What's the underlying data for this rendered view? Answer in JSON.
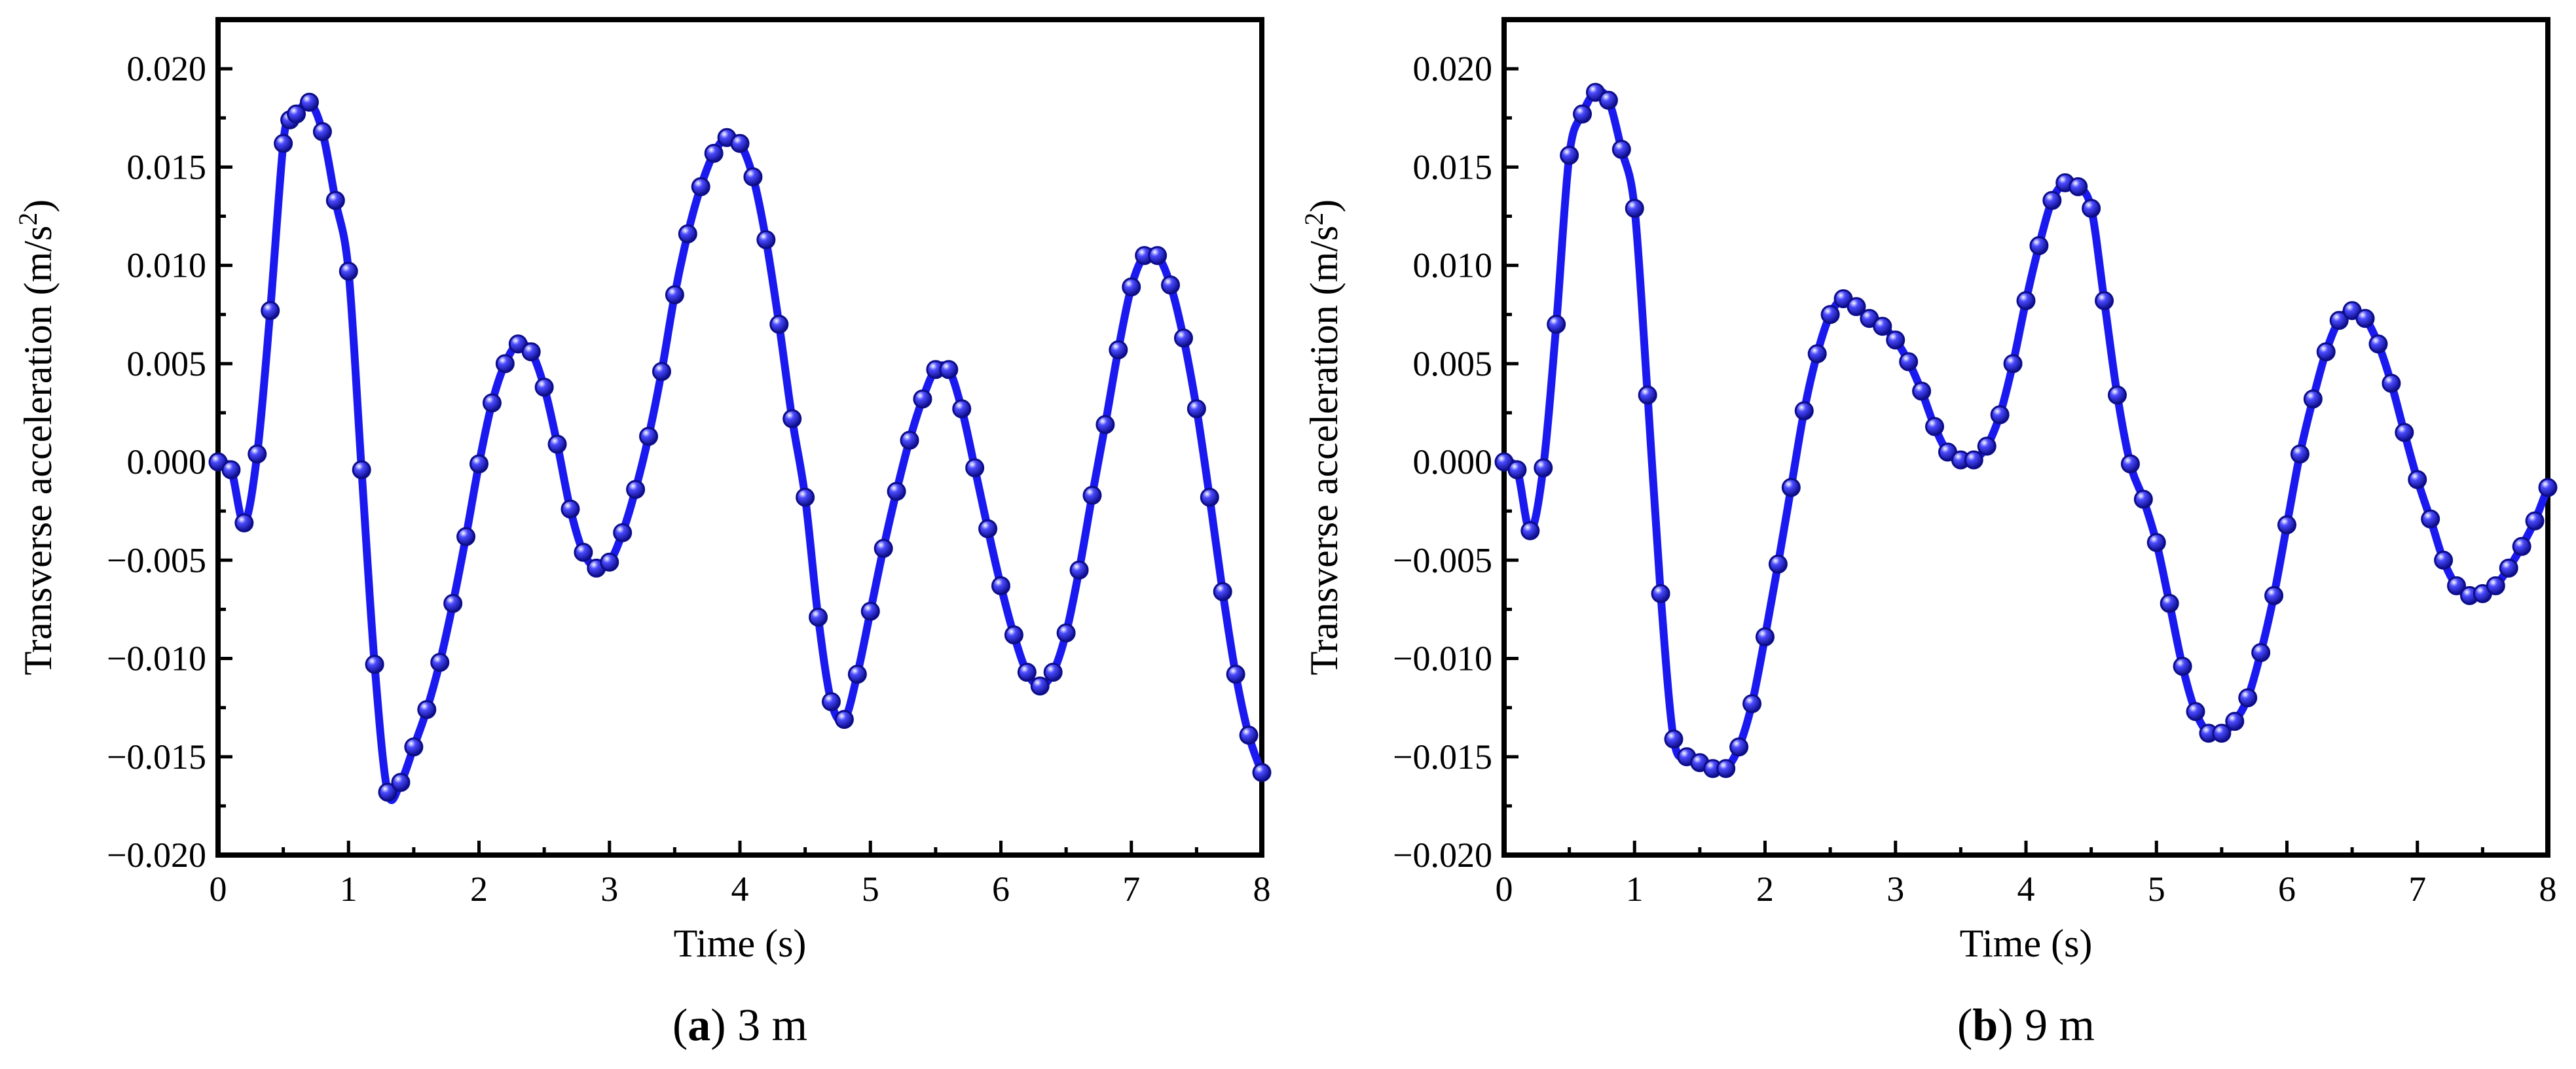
{
  "colors": {
    "series": "#1a1af0",
    "marker_fill": "#4a4aff",
    "marker_edge": "#0d0d8a",
    "axis": "#000000"
  },
  "chart_data": [
    {
      "type": "line",
      "panel_letter": "a",
      "caption": "3 m",
      "xlabel": "Time (s)",
      "ylabel": "Transverse acceleration (m/s",
      "ylabel_sup": "2",
      "ylabel_close": ")",
      "xlim": [
        0,
        8
      ],
      "ylim": [
        -0.02,
        0.0225
      ],
      "xticks": [
        "0",
        "1",
        "2",
        "3",
        "4",
        "5",
        "6",
        "7",
        "8"
      ],
      "yticks": [
        "−0.020",
        "−0.015",
        "−0.010",
        "−0.005",
        "0.000",
        "0.005",
        "0.010",
        "0.015",
        "0.020"
      ],
      "series": [
        {
          "x": [
            0,
            0.1,
            0.2,
            0.3,
            0.4,
            0.5,
            0.55,
            0.6,
            0.7,
            0.8,
            0.9,
            1.0,
            1.1,
            1.2,
            1.3,
            1.4,
            1.5,
            1.6,
            1.7,
            1.8,
            1.9,
            2.0,
            2.1,
            2.2,
            2.3,
            2.4,
            2.5,
            2.6,
            2.7,
            2.8,
            2.9,
            3.0,
            3.1,
            3.2,
            3.3,
            3.4,
            3.5,
            3.6,
            3.7,
            3.8,
            3.9,
            4.0,
            4.1,
            4.2,
            4.3,
            4.4,
            4.5,
            4.6,
            4.7,
            4.8,
            4.9,
            5.0,
            5.1,
            5.2,
            5.3,
            5.4,
            5.5,
            5.6,
            5.7,
            5.8,
            5.9,
            6.0,
            6.1,
            6.2,
            6.3,
            6.4,
            6.5,
            6.6,
            6.7,
            6.8,
            6.9,
            7.0,
            7.1,
            7.2,
            7.3,
            7.4,
            7.5,
            7.6,
            7.7,
            7.8,
            7.9,
            8.0
          ],
          "y": [
            0.0,
            -0.0004,
            -0.0031,
            0.0004,
            0.0077,
            0.0162,
            0.0174,
            0.0177,
            0.0183,
            0.0168,
            0.0133,
            0.0097,
            -0.0004,
            -0.0103,
            -0.0168,
            -0.0163,
            -0.0145,
            -0.0126,
            -0.0102,
            -0.0072,
            -0.0038,
            -0.0001,
            0.003,
            0.005,
            0.006,
            0.0056,
            0.0038,
            0.0009,
            -0.0024,
            -0.0046,
            -0.0054,
            -0.0051,
            -0.0036,
            -0.0014,
            0.0013,
            0.0046,
            0.0085,
            0.0116,
            0.014,
            0.0157,
            0.0165,
            0.0162,
            0.0145,
            0.0113,
            0.007,
            0.0022,
            -0.0018,
            -0.0079,
            -0.0122,
            -0.0131,
            -0.0108,
            -0.0076,
            -0.0044,
            -0.0015,
            0.0011,
            0.0032,
            0.0047,
            0.0047,
            0.0027,
            -0.0003,
            -0.0034,
            -0.0063,
            -0.0088,
            -0.0107,
            -0.0114,
            -0.0107,
            -0.0087,
            -0.0055,
            -0.0017,
            0.0019,
            0.0057,
            0.0089,
            0.0105,
            0.0105,
            0.009,
            0.0063,
            0.0027,
            -0.0018,
            -0.0066,
            -0.0108,
            -0.0139,
            -0.0158
          ]
        }
      ]
    },
    {
      "type": "line",
      "panel_letter": "b",
      "caption": "9 m",
      "xlabel": "Time (s)",
      "ylabel": "Transverse acceleration (m/s",
      "ylabel_sup": "2",
      "ylabel_close": ")",
      "xlim": [
        0,
        8
      ],
      "ylim": [
        -0.02,
        0.0225
      ],
      "xticks": [
        "0",
        "1",
        "2",
        "3",
        "4",
        "5",
        "6",
        "7",
        "8"
      ],
      "yticks": [
        "−0.020",
        "−0.015",
        "−0.010",
        "−0.005",
        "0.000",
        "0.005",
        "0.010",
        "0.015",
        "0.020"
      ],
      "series": [
        {
          "x": [
            0,
            0.1,
            0.2,
            0.3,
            0.4,
            0.5,
            0.6,
            0.7,
            0.8,
            0.9,
            1.0,
            1.1,
            1.2,
            1.3,
            1.4,
            1.5,
            1.6,
            1.7,
            1.8,
            1.9,
            2.0,
            2.1,
            2.2,
            2.3,
            2.4,
            2.5,
            2.6,
            2.7,
            2.8,
            2.9,
            3.0,
            3.1,
            3.2,
            3.3,
            3.4,
            3.5,
            3.6,
            3.7,
            3.8,
            3.9,
            4.0,
            4.1,
            4.2,
            4.3,
            4.4,
            4.5,
            4.6,
            4.7,
            4.8,
            4.9,
            5.0,
            5.1,
            5.2,
            5.3,
            5.4,
            5.5,
            5.6,
            5.7,
            5.8,
            5.9,
            6.0,
            6.1,
            6.2,
            6.3,
            6.4,
            6.5,
            6.6,
            6.7,
            6.8,
            6.9,
            7.0,
            7.1,
            7.2,
            7.3,
            7.4,
            7.5,
            7.6,
            7.7,
            7.8,
            7.9,
            8.0
          ],
          "y": [
            0.0,
            -0.0004,
            -0.0035,
            -0.0003,
            0.007,
            0.0156,
            0.0177,
            0.0188,
            0.0184,
            0.0159,
            0.0129,
            0.0034,
            -0.0067,
            -0.0141,
            -0.015,
            -0.0153,
            -0.0156,
            -0.0156,
            -0.0145,
            -0.0123,
            -0.0089,
            -0.0052,
            -0.0013,
            0.0026,
            0.0055,
            0.0075,
            0.0083,
            0.0079,
            0.0073,
            0.0069,
            0.0062,
            0.0051,
            0.0036,
            0.0018,
            0.0005,
            0.0001,
            0.0001,
            0.0008,
            0.0024,
            0.005,
            0.0082,
            0.011,
            0.0133,
            0.0142,
            0.014,
            0.0129,
            0.0082,
            0.0034,
            -0.0001,
            -0.0019,
            -0.0041,
            -0.0072,
            -0.0104,
            -0.0127,
            -0.0138,
            -0.0138,
            -0.0132,
            -0.012,
            -0.0097,
            -0.0068,
            -0.0032,
            0.0004,
            0.0032,
            0.0056,
            0.0072,
            0.0077,
            0.0073,
            0.006,
            0.004,
            0.0015,
            -0.0009,
            -0.0029,
            -0.005,
            -0.0063,
            -0.0068,
            -0.0067,
            -0.0063,
            -0.0054,
            -0.0043,
            -0.003,
            -0.0013
          ]
        }
      ]
    }
  ]
}
